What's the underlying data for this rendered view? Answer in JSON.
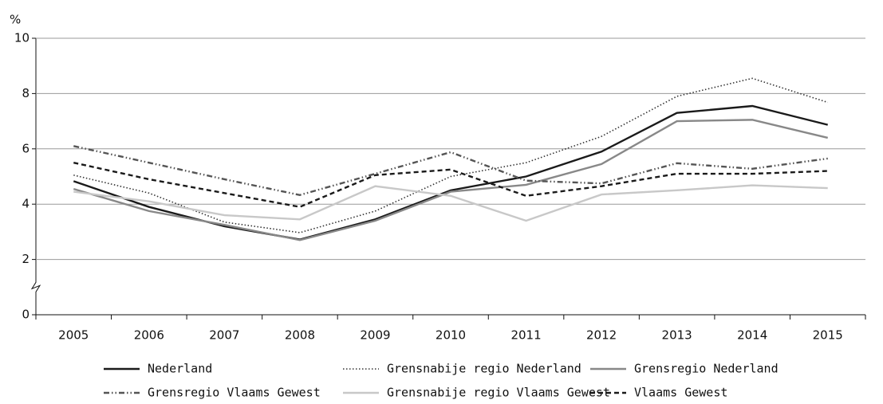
{
  "chart_data": {
    "type": "line",
    "y_unit": "%",
    "categories": [
      "2005",
      "2006",
      "2007",
      "2008",
      "2009",
      "2010",
      "2011",
      "2012",
      "2013",
      "2014",
      "2015"
    ],
    "ylim": [
      0,
      10
    ],
    "yticks": [
      0,
      2,
      4,
      6,
      8,
      10
    ],
    "grid": true,
    "axis_break": true,
    "series": [
      {
        "name": "Nederland",
        "color": "#1a1a1a",
        "dash": "solid",
        "values": [
          4.83,
          3.9,
          3.2,
          2.72,
          3.45,
          4.5,
          5.0,
          5.9,
          7.3,
          7.55,
          6.87
        ]
      },
      {
        "name": "Grensnabije regio Nederland",
        "color": "#333333",
        "dash": "dotted",
        "values": [
          5.05,
          4.4,
          3.35,
          2.97,
          3.75,
          5.0,
          5.5,
          6.45,
          7.9,
          8.55,
          7.68
        ]
      },
      {
        "name": "Grensregio Nederland",
        "color": "#888888",
        "dash": "solid",
        "values": [
          4.55,
          3.75,
          3.25,
          2.7,
          3.4,
          4.45,
          4.7,
          5.45,
          7.0,
          7.05,
          6.4
        ]
      },
      {
        "name": "Grensregio Vlaams Gewest",
        "color": "#555555",
        "dash": "dashdotdot",
        "values": [
          6.1,
          5.5,
          4.9,
          4.33,
          5.1,
          5.88,
          4.85,
          4.75,
          5.48,
          5.28,
          5.65
        ]
      },
      {
        "name": "Grensnabije regio Vlaams Gewest",
        "color": "#c8c8c8",
        "dash": "solid",
        "values": [
          4.45,
          4.1,
          3.6,
          3.45,
          4.65,
          4.3,
          3.4,
          4.35,
          4.5,
          4.68,
          4.58
        ]
      },
      {
        "name": "Vlaams Gewest",
        "color": "#1a1a1a",
        "dash": "dashed",
        "values": [
          5.5,
          4.9,
          4.4,
          3.9,
          5.05,
          5.25,
          4.3,
          4.65,
          5.1,
          5.1,
          5.2
        ]
      }
    ]
  }
}
